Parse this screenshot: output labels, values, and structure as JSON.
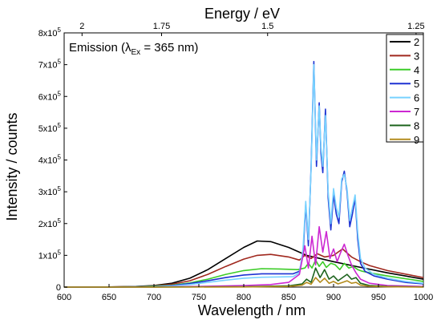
{
  "chart_data": {
    "type": "line",
    "xlabel": "Wavelength / nm",
    "x2label": "Energy / eV",
    "ylabel": "Intensity / counts",
    "annotation": {
      "prefix": "Emission (",
      "symbol": "λ",
      "subscript": "Ex",
      "suffix": " = 365 nm)"
    },
    "xlim": [
      600,
      1000
    ],
    "ylim": [
      0,
      800000
    ],
    "x_ticks": [
      {
        "value": 600,
        "label": "600"
      },
      {
        "value": 650,
        "label": "650"
      },
      {
        "value": 700,
        "label": "700"
      },
      {
        "value": 750,
        "label": "750"
      },
      {
        "value": 800,
        "label": "800"
      },
      {
        "value": 850,
        "label": "850"
      },
      {
        "value": 900,
        "label": "900"
      },
      {
        "value": 950,
        "label": "950"
      },
      {
        "value": 1000,
        "label": "1000"
      }
    ],
    "y_ticks": [
      {
        "value": 0,
        "mant": "0",
        "exp": ""
      },
      {
        "value": 100000,
        "mant": "1x10",
        "exp": "5"
      },
      {
        "value": 200000,
        "mant": "2x10",
        "exp": "5"
      },
      {
        "value": 300000,
        "mant": "3x10",
        "exp": "5"
      },
      {
        "value": 400000,
        "mant": "4x10",
        "exp": "5"
      },
      {
        "value": 500000,
        "mant": "5x10",
        "exp": "5"
      },
      {
        "value": 600000,
        "mant": "6x10",
        "exp": "5"
      },
      {
        "value": 700000,
        "mant": "7x10",
        "exp": "5"
      },
      {
        "value": 800000,
        "mant": "8x10",
        "exp": "5"
      }
    ],
    "x2_ticks": [
      {
        "value": 2.0,
        "label": "2"
      },
      {
        "value": 1.75,
        "label": "1.75"
      },
      {
        "value": 1.5,
        "label": "1.5"
      },
      {
        "value": 1.25,
        "label": "1.25"
      }
    ],
    "legend_position": "top-right",
    "series": [
      {
        "name": "2",
        "color": "#000000",
        "x": [
          600,
          650,
          680,
          700,
          720,
          740,
          760,
          780,
          800,
          815,
          830,
          850,
          870,
          900,
          930,
          960,
          1000
        ],
        "y": [
          0,
          500,
          2000,
          5000,
          12000,
          28000,
          55000,
          90000,
          125000,
          145000,
          143000,
          125000,
          100000,
          80000,
          62000,
          45000,
          25000
        ]
      },
      {
        "name": "3",
        "color": "#a0281e",
        "x": [
          600,
          650,
          680,
          700,
          720,
          740,
          760,
          780,
          800,
          815,
          830,
          850,
          862,
          868,
          875,
          882,
          890,
          900,
          910,
          920,
          930,
          940,
          960,
          1000
        ],
        "y": [
          0,
          400,
          1500,
          4000,
          9000,
          20000,
          40000,
          65000,
          88000,
          100000,
          103000,
          95000,
          85000,
          100000,
          90000,
          105000,
          95000,
          100000,
          120000,
          95000,
          80000,
          68000,
          52000,
          30000
        ]
      },
      {
        "name": "4",
        "color": "#3ccc28",
        "x": [
          600,
          650,
          680,
          700,
          720,
          740,
          760,
          780,
          800,
          820,
          840,
          860,
          868,
          872,
          876,
          880,
          884,
          888,
          892,
          897,
          902,
          907,
          912,
          917,
          922,
          927,
          932,
          940,
          960,
          1000
        ],
        "y": [
          0,
          300,
          1000,
          3000,
          6000,
          13000,
          25000,
          40000,
          52000,
          58000,
          57000,
          55000,
          60000,
          75000,
          60000,
          85000,
          65000,
          80000,
          62000,
          75000,
          70000,
          55000,
          75000,
          60000,
          65000,
          55000,
          50000,
          45000,
          35000,
          18000
        ]
      },
      {
        "name": "5",
        "color": "#1e32d2",
        "x": [
          600,
          650,
          700,
          720,
          740,
          760,
          780,
          800,
          820,
          840,
          855,
          862,
          866,
          869,
          872,
          875,
          878,
          881,
          884,
          886,
          888,
          891,
          894,
          897,
          900,
          903,
          906,
          909,
          912,
          915,
          918,
          921,
          924,
          927,
          930,
          935,
          945,
          960,
          980,
          1000
        ],
        "y": [
          0,
          200,
          1500,
          5000,
          11000,
          20000,
          30000,
          38000,
          42000,
          42000,
          42000,
          50000,
          100000,
          260000,
          130000,
          380000,
          710000,
          380000,
          580000,
          420000,
          360000,
          560000,
          280000,
          180000,
          290000,
          230000,
          200000,
          330000,
          365000,
          300000,
          190000,
          230000,
          280000,
          150000,
          75000,
          50000,
          35000,
          25000,
          15000,
          10000
        ]
      },
      {
        "name": "6",
        "color": "#78d2ff",
        "x": [
          600,
          650,
          700,
          720,
          740,
          760,
          780,
          800,
          820,
          840,
          855,
          862,
          866,
          869,
          872,
          875,
          878,
          881,
          884,
          886,
          888,
          891,
          894,
          897,
          900,
          903,
          906,
          909,
          912,
          915,
          918,
          921,
          924,
          927,
          930,
          935,
          945,
          960,
          980,
          1000
        ],
        "y": [
          0,
          150,
          1000,
          3500,
          8000,
          15000,
          22000,
          28000,
          31000,
          32000,
          33000,
          45000,
          120000,
          270000,
          150000,
          370000,
          700000,
          400000,
          570000,
          440000,
          380000,
          540000,
          300000,
          200000,
          310000,
          250000,
          220000,
          340000,
          355000,
          310000,
          210000,
          250000,
          290000,
          170000,
          90000,
          60000,
          40000,
          28000,
          18000,
          12000
        ]
      },
      {
        "name": "7",
        "color": "#cc28d2",
        "x": [
          600,
          700,
          750,
          800,
          830,
          850,
          862,
          868,
          872,
          876,
          880,
          884,
          888,
          892,
          896,
          900,
          904,
          908,
          912,
          916,
          920,
          925,
          930,
          940,
          960,
          1000
        ],
        "y": [
          0,
          500,
          2000,
          5000,
          8000,
          15000,
          40000,
          130000,
          60000,
          160000,
          70000,
          190000,
          110000,
          175000,
          90000,
          120000,
          80000,
          110000,
          135000,
          100000,
          70000,
          45000,
          25000,
          12000,
          5000,
          2000
        ]
      },
      {
        "name": "8",
        "color": "#1e641e",
        "x": [
          600,
          700,
          800,
          850,
          865,
          870,
          875,
          880,
          885,
          890,
          895,
          900,
          905,
          910,
          915,
          920,
          925,
          930,
          940,
          960,
          1000
        ],
        "y": [
          0,
          200,
          1000,
          4000,
          10000,
          25000,
          15000,
          60000,
          30000,
          55000,
          25000,
          35000,
          20000,
          30000,
          40000,
          25000,
          30000,
          12000,
          5000,
          2000,
          500
        ]
      },
      {
        "name": "9",
        "color": "#b48c1e",
        "x": [
          600,
          700,
          800,
          850,
          865,
          870,
          875,
          880,
          885,
          890,
          895,
          900,
          905,
          910,
          915,
          920,
          925,
          930,
          940,
          960,
          1000
        ],
        "y": [
          0,
          100,
          500,
          2000,
          6000,
          15000,
          9000,
          30000,
          15000,
          28000,
          12000,
          18000,
          10000,
          15000,
          20000,
          12000,
          15000,
          6000,
          2500,
          1000,
          200
        ]
      }
    ]
  }
}
